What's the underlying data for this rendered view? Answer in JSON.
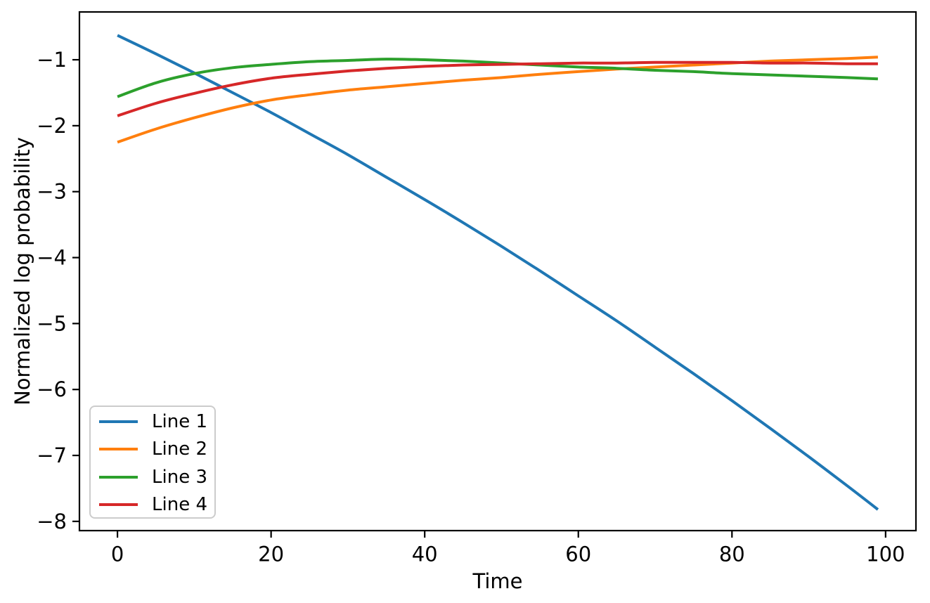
{
  "chart_data": {
    "type": "line",
    "title": "",
    "xlabel": "Time",
    "ylabel": "Normalized log probability",
    "xlim": [
      -4.95,
      103.95
    ],
    "ylim": [
      -8.14,
      -0.275
    ],
    "xticks": [
      0,
      20,
      40,
      60,
      80,
      100
    ],
    "xtick_labels": [
      "0",
      "20",
      "40",
      "60",
      "80",
      "100"
    ],
    "yticks": [
      -1,
      -2,
      -3,
      -4,
      -5,
      -6,
      -7,
      -8
    ],
    "ytick_labels": [
      "−1",
      "−2",
      "−3",
      "−4",
      "−5",
      "−6",
      "−7",
      "−8"
    ],
    "grid": false,
    "legend_position": "lower left",
    "x": [
      0,
      5,
      10,
      15,
      20,
      25,
      30,
      35,
      40,
      45,
      50,
      55,
      60,
      65,
      70,
      75,
      80,
      85,
      90,
      95,
      99
    ],
    "series": [
      {
        "name": "Line 1",
        "color": "#1f77b4",
        "values": [
          -0.63,
          -0.91,
          -1.2,
          -1.5,
          -1.8,
          -2.12,
          -2.44,
          -2.78,
          -3.12,
          -3.47,
          -3.83,
          -4.2,
          -4.58,
          -4.96,
          -5.36,
          -5.76,
          -6.17,
          -6.59,
          -7.02,
          -7.46,
          -7.82
        ]
      },
      {
        "name": "Line 2",
        "color": "#ff7f0e",
        "values": [
          -2.25,
          -2.05,
          -1.88,
          -1.73,
          -1.61,
          -1.53,
          -1.46,
          -1.41,
          -1.36,
          -1.31,
          -1.27,
          -1.22,
          -1.18,
          -1.14,
          -1.11,
          -1.08,
          -1.05,
          -1.02,
          -1.0,
          -0.98,
          -0.96
        ]
      },
      {
        "name": "Line 3",
        "color": "#2ca02c",
        "values": [
          -1.56,
          -1.35,
          -1.21,
          -1.12,
          -1.07,
          -1.03,
          -1.01,
          -0.99,
          -1.0,
          -1.02,
          -1.05,
          -1.08,
          -1.11,
          -1.13,
          -1.16,
          -1.18,
          -1.21,
          -1.23,
          -1.25,
          -1.27,
          -1.29
        ]
      },
      {
        "name": "Line 4",
        "color": "#d62728",
        "values": [
          -1.85,
          -1.66,
          -1.51,
          -1.38,
          -1.28,
          -1.22,
          -1.17,
          -1.13,
          -1.1,
          -1.08,
          -1.07,
          -1.06,
          -1.05,
          -1.05,
          -1.04,
          -1.04,
          -1.04,
          -1.05,
          -1.05,
          -1.06,
          -1.06
        ]
      }
    ],
    "axis_color": "#000000",
    "legend_border_color": "#cccccc"
  }
}
